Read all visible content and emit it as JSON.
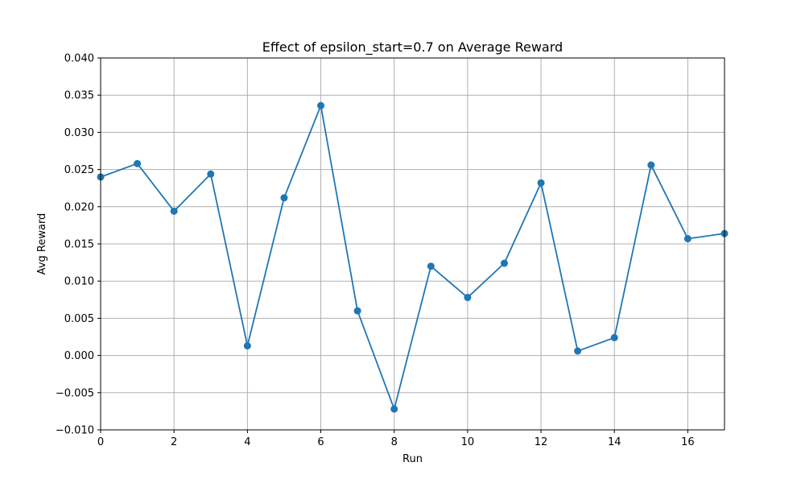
{
  "chart_data": {
    "type": "line",
    "title": "Effect of epsilon_start=0.7 on Average Reward",
    "xlabel": "Run",
    "ylabel": "Avg Reward",
    "xlim": [
      0,
      17
    ],
    "ylim": [
      -0.01,
      0.04
    ],
    "grid": true,
    "x_ticks": [
      0,
      2,
      4,
      6,
      8,
      10,
      12,
      14,
      16
    ],
    "x_tick_labels": [
      "0",
      "2",
      "4",
      "6",
      "8",
      "10",
      "12",
      "14",
      "16"
    ],
    "y_ticks": [
      -0.01,
      -0.005,
      0.0,
      0.005,
      0.01,
      0.015,
      0.02,
      0.025,
      0.03,
      0.035,
      0.04
    ],
    "y_tick_labels": [
      "−0.010",
      "−0.005",
      "0.000",
      "0.005",
      "0.010",
      "0.015",
      "0.020",
      "0.025",
      "0.030",
      "0.035",
      "0.040"
    ],
    "series": [
      {
        "color": "#1f77b4",
        "marker": "circle",
        "x": [
          0,
          1,
          2,
          3,
          4,
          5,
          6,
          7,
          8,
          9,
          10,
          11,
          12,
          13,
          14,
          15,
          16,
          17
        ],
        "y": [
          0.024,
          0.0258,
          0.0194,
          0.0244,
          0.0013,
          0.0212,
          0.0336,
          0.006,
          -0.0072,
          0.012,
          0.0078,
          0.0124,
          0.0232,
          0.0006,
          0.0024,
          0.0256,
          0.0157,
          0.0164
        ]
      }
    ]
  }
}
